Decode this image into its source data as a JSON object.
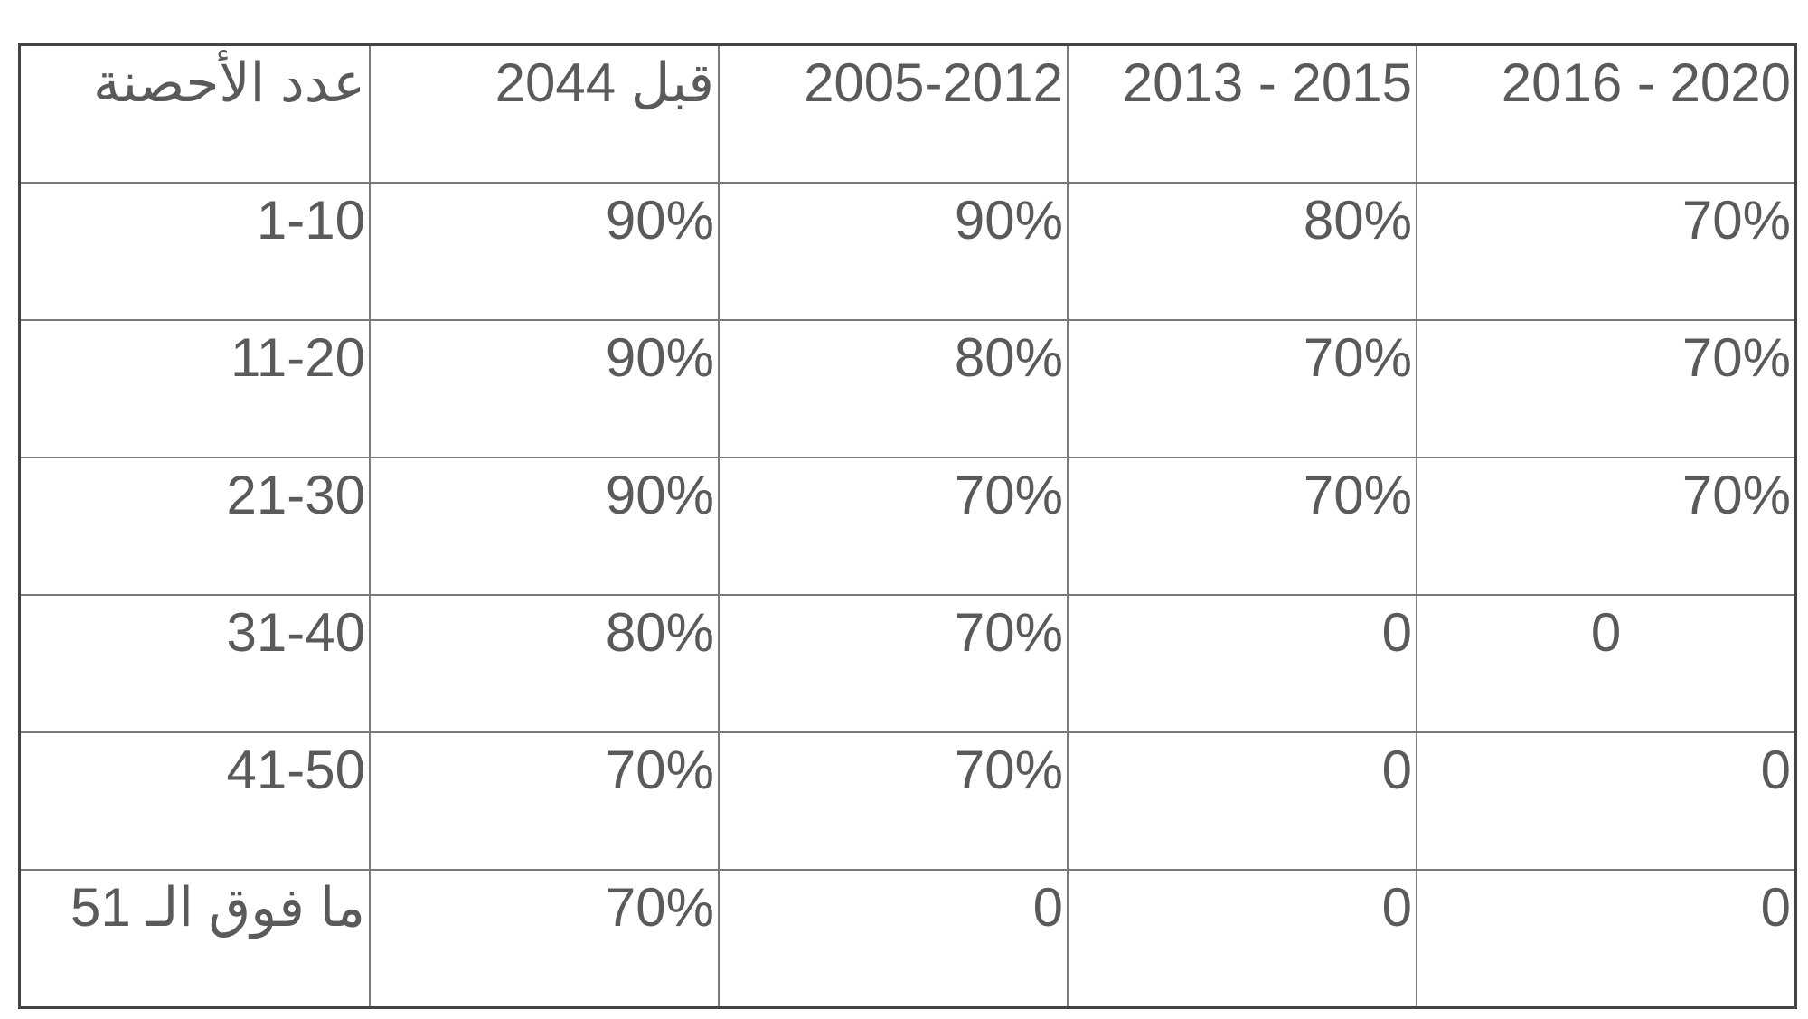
{
  "table": {
    "header": [
      "عدد الأحصنة",
      "قبل 2044",
      "2005-2012",
      "2013 - 2015",
      "2016 - 2020"
    ],
    "rows": [
      [
        "1-10",
        "90%",
        "90%",
        "80%",
        "70%"
      ],
      [
        "11-20",
        "90%",
        "80%",
        "70%",
        "70%"
      ],
      [
        "21-30",
        "90%",
        "70%",
        "70%",
        "70%"
      ],
      [
        "31-40",
        "80%",
        "70%",
        "0",
        "0"
      ],
      [
        "41-50",
        "70%",
        "70%",
        "0",
        "0"
      ],
      [
        "ما فوق الـ 51",
        "70%",
        "0",
        "0",
        "0"
      ]
    ]
  }
}
